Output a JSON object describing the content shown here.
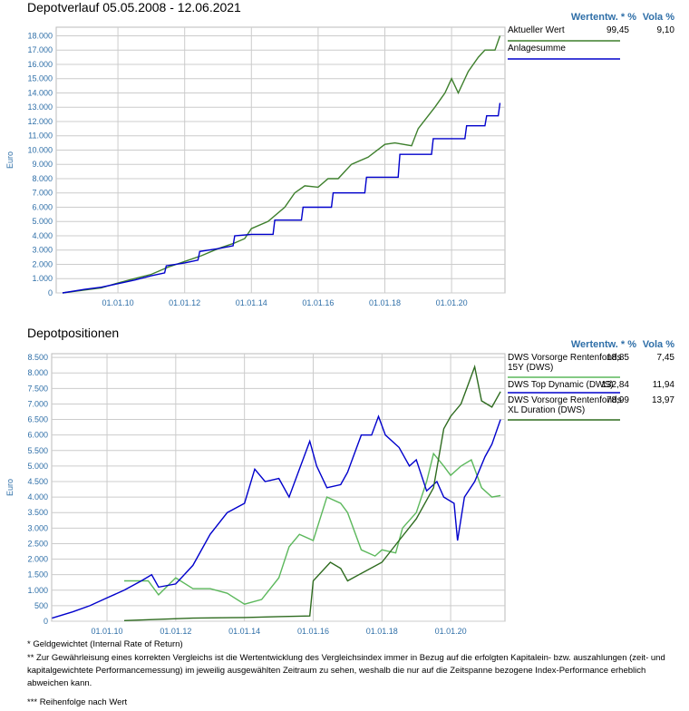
{
  "chart_data": [
    {
      "type": "line",
      "title": "Depotverlauf 05.05.2008 - 12.06.2021",
      "ylabel": "Euro",
      "legend_headers": [
        "Wertentw. * %",
        "Vola %"
      ],
      "xlim": [
        2008.15,
        2021.6
      ],
      "xticks": [
        {
          "value": 2010,
          "label": "01.01.10"
        },
        {
          "value": 2012,
          "label": "01.01.12"
        },
        {
          "value": 2014,
          "label": "01.01.14"
        },
        {
          "value": 2016,
          "label": "01.01.16"
        },
        {
          "value": 2018,
          "label": "01.01.18"
        },
        {
          "value": 2020,
          "label": "01.01.20"
        }
      ],
      "ylim": [
        0,
        18600
      ],
      "yticks": [
        {
          "value": 0,
          "label": "0"
        },
        {
          "value": 1000,
          "label": "1.000"
        },
        {
          "value": 2000,
          "label": "2.000"
        },
        {
          "value": 3000,
          "label": "3.000"
        },
        {
          "value": 4000,
          "label": "4.000"
        },
        {
          "value": 5000,
          "label": "5.000"
        },
        {
          "value": 6000,
          "label": "6.000"
        },
        {
          "value": 7000,
          "label": "7.000"
        },
        {
          "value": 8000,
          "label": "8.000"
        },
        {
          "value": 9000,
          "label": "9.000"
        },
        {
          "value": 10000,
          "label": "10.000"
        },
        {
          "value": 11000,
          "label": "11.000"
        },
        {
          "value": 12000,
          "label": "12.000"
        },
        {
          "value": 13000,
          "label": "13.000"
        },
        {
          "value": 14000,
          "label": "14.000"
        },
        {
          "value": 15000,
          "label": "15.000"
        },
        {
          "value": 16000,
          "label": "16.000"
        },
        {
          "value": 17000,
          "label": "17.000"
        },
        {
          "value": 18000,
          "label": "18.000"
        }
      ],
      "grid": true,
      "series": [
        {
          "name": "Aktueller Wert",
          "color": "#3d7f2c",
          "performance": "99,45",
          "vola": "9,10",
          "x": [
            2008.34,
            2009,
            2009.5,
            2010,
            2010.5,
            2011,
            2011.5,
            2012,
            2012.5,
            2013,
            2013.5,
            2013.8,
            2014,
            2014.5,
            2015,
            2015.3,
            2015.6,
            2016,
            2016.3,
            2016.6,
            2017,
            2017.5,
            2018,
            2018.3,
            2018.8,
            2019,
            2019.5,
            2019.8,
            2020,
            2020.2,
            2020.5,
            2020.8,
            2021,
            2021.3,
            2021.45
          ],
          "values": [
            0,
            200,
            350,
            700,
            1000,
            1300,
            1800,
            2200,
            2600,
            3100,
            3500,
            3800,
            4500,
            5000,
            6000,
            7000,
            7500,
            7400,
            8000,
            8000,
            9000,
            9500,
            10400,
            10500,
            10300,
            11500,
            13000,
            14000,
            15000,
            14000,
            15500,
            16500,
            17000,
            17000,
            18000
          ]
        },
        {
          "name": "Anlagesumme",
          "color": "#0000cc",
          "x": [
            2008.34,
            2009,
            2009.5,
            2010,
            2010.5,
            2011,
            2011.4,
            2011.45,
            2012,
            2012.4,
            2012.45,
            2013,
            2013.45,
            2013.5,
            2014,
            2014.65,
            2014.7,
            2015.5,
            2015.55,
            2016.4,
            2016.45,
            2017.4,
            2017.45,
            2018.4,
            2018.45,
            2019.4,
            2019.45,
            2020.4,
            2020.45,
            2021,
            2021.05,
            2021.4,
            2021.45
          ],
          "values": [
            0,
            250,
            400,
            650,
            900,
            1200,
            1400,
            1900,
            2100,
            2300,
            2900,
            3100,
            3300,
            4000,
            4100,
            4100,
            5100,
            5100,
            6000,
            6000,
            7000,
            7000,
            8100,
            8100,
            9700,
            9700,
            10800,
            10800,
            11700,
            11700,
            12400,
            12400,
            13300
          ]
        }
      ]
    },
    {
      "type": "line",
      "title": "Depotpositionen",
      "ylabel": "Euro",
      "legend_headers": [
        "Wertentw. * %",
        "Vola %"
      ],
      "xlim": [
        2008.39,
        2021.58
      ],
      "xticks": [
        {
          "value": 2010,
          "label": "01.01.10"
        },
        {
          "value": 2012,
          "label": "01.01.12"
        },
        {
          "value": 2014,
          "label": "01.01.14"
        },
        {
          "value": 2016,
          "label": "01.01.16"
        },
        {
          "value": 2018,
          "label": "01.01.18"
        },
        {
          "value": 2020,
          "label": "01.01.20"
        }
      ],
      "ylim": [
        0,
        8620
      ],
      "yticks": [
        {
          "value": 0,
          "label": "0"
        },
        {
          "value": 500,
          "label": "500"
        },
        {
          "value": 1000,
          "label": "1.000"
        },
        {
          "value": 1500,
          "label": "1.500"
        },
        {
          "value": 2000,
          "label": "2.000"
        },
        {
          "value": 2500,
          "label": "2.500"
        },
        {
          "value": 3000,
          "label": "3.000"
        },
        {
          "value": 3500,
          "label": "3.500"
        },
        {
          "value": 4000,
          "label": "4.000"
        },
        {
          "value": 4500,
          "label": "4.500"
        },
        {
          "value": 5000,
          "label": "5.000"
        },
        {
          "value": 5500,
          "label": "5.500"
        },
        {
          "value": 6000,
          "label": "6.000"
        },
        {
          "value": 6500,
          "label": "6.500"
        },
        {
          "value": 7000,
          "label": "7.000"
        },
        {
          "value": 7500,
          "label": "7.500"
        },
        {
          "value": 8000,
          "label": "8.000"
        },
        {
          "value": 8500,
          "label": "8.500"
        }
      ],
      "grid": true,
      "series": [
        {
          "name": "DWS Vorsorge Rentenfonds 15Y (DWS)",
          "color": "#5cb85c",
          "performance": "18,85",
          "vola": "7,45",
          "x": [
            2010.5,
            2011.2,
            2011.5,
            2012,
            2012.5,
            2013,
            2013.5,
            2014,
            2014.5,
            2015,
            2015.3,
            2015.6,
            2016,
            2016.4,
            2016.8,
            2017,
            2017.4,
            2017.8,
            2018,
            2018.4,
            2018.6,
            2019,
            2019.3,
            2019.5,
            2019.8,
            2020,
            2020.3,
            2020.6,
            2020.9,
            2021.2,
            2021.45
          ],
          "values": [
            1300,
            1300,
            850,
            1400,
            1050,
            1050,
            900,
            550,
            700,
            1400,
            2400,
            2800,
            2600,
            4000,
            3800,
            3500,
            2300,
            2100,
            2300,
            2200,
            3000,
            3500,
            4500,
            5400,
            5000,
            4700,
            5000,
            5200,
            4300,
            4000,
            4050
          ]
        },
        {
          "name": "DWS Top Dynamic (DWS)",
          "color": "#0000cc",
          "performance": "132,84",
          "vola": "11,94",
          "x": [
            2008.4,
            2009,
            2009.5,
            2010,
            2010.5,
            2011,
            2011.3,
            2011.5,
            2012,
            2012.5,
            2013,
            2013.5,
            2014,
            2014.3,
            2014.6,
            2015,
            2015.3,
            2015.6,
            2015.9,
            2016.1,
            2016.4,
            2016.8,
            2017,
            2017.4,
            2017.7,
            2017.9,
            2018.1,
            2018.5,
            2018.8,
            2019,
            2019.3,
            2019.6,
            2019.8,
            2020.1,
            2020.2,
            2020.4,
            2020.7,
            2021,
            2021.2,
            2021.45
          ],
          "values": [
            100,
            300,
            500,
            750,
            1000,
            1300,
            1500,
            1100,
            1200,
            1800,
            2800,
            3500,
            3800,
            4900,
            4500,
            4600,
            4000,
            4900,
            5800,
            5000,
            4300,
            4400,
            4800,
            6000,
            6000,
            6600,
            6000,
            5600,
            5000,
            5200,
            4200,
            4500,
            4000,
            3800,
            2600,
            4000,
            4500,
            5300,
            5700,
            6500
          ]
        },
        {
          "name": "DWS Vorsorge Rentenfonds XL Duration (DWS)",
          "color": "#2e6b1f",
          "performance": "78,99",
          "vola": "13,97",
          "x": [
            2010.5,
            2011.5,
            2012.5,
            2014,
            2015,
            2015.9,
            2016,
            2016.5,
            2016.8,
            2017,
            2017.5,
            2018,
            2018.5,
            2019,
            2019.5,
            2019.8,
            2020,
            2020.3,
            2020.5,
            2020.7,
            2020.9,
            2021.2,
            2021.45
          ],
          "values": [
            20,
            60,
            100,
            120,
            150,
            170,
            1300,
            1900,
            1700,
            1300,
            1600,
            1900,
            2600,
            3300,
            4300,
            6200,
            6600,
            7000,
            7600,
            8200,
            7100,
            6900,
            7400
          ]
        }
      ]
    }
  ],
  "footnotes": [
    "* Geldgewichtet (Internal Rate of Return)",
    "** Zur Gewährleisung eines korrekten Vergleichs ist die Wertentwicklung des Vergleichsindex immer in Bezug auf die erfolgten Kapitalein- bzw. auszahlungen (zeit- und kapitalgewichtete Performancemessung) im jeweilig ausgewählten Zeitraum zu sehen, weshalb die nur auf die Zeitspanne bezogene Index-Performance erheblich abweichen kann.",
    "*** Reihenfolge nach Wert"
  ]
}
